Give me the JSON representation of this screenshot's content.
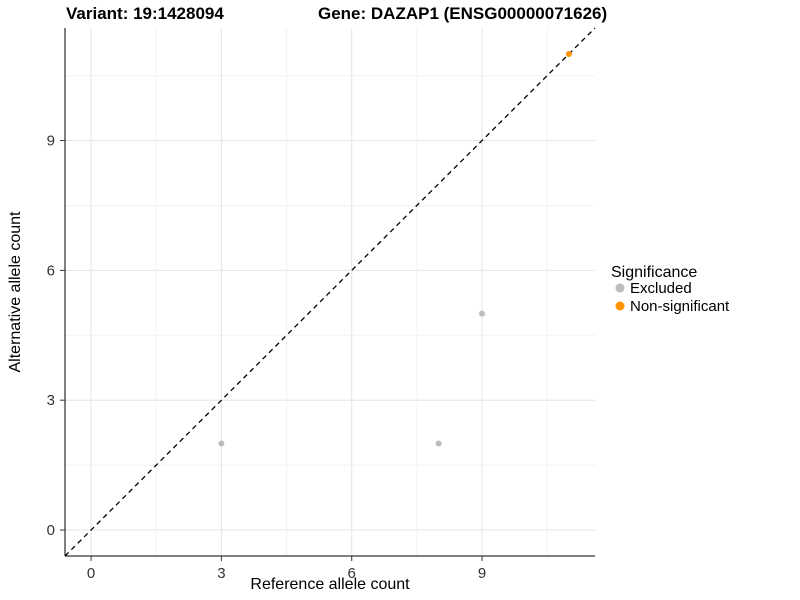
{
  "titles": {
    "left": "Variant: 19:1428094",
    "right": "Gene: DAZAP1 (ENSG00000071626)"
  },
  "chart_data": {
    "type": "scatter",
    "xlabel": "Reference allele count",
    "ylabel": "Alternative allele count",
    "xlim": [
      -0.6,
      11.6
    ],
    "ylim": [
      -0.6,
      11.6
    ],
    "xticks": [
      0,
      3,
      6,
      9
    ],
    "yticks": [
      0,
      3,
      6,
      9
    ],
    "minor_ticks": [
      1.5,
      4.5,
      7.5,
      10.5
    ],
    "grid": "on",
    "identity_line": {
      "type": "y=x",
      "style": "dashed",
      "color": "#000000"
    },
    "colors": {
      "excluded": "#bdbdbd",
      "non_significant": "#ff9300",
      "grid_major": "#e5e5e5",
      "grid_minor": "#f2f2f2",
      "axis_line": "#000000"
    },
    "legend": {
      "title": "Significance",
      "position": "right",
      "entries": [
        {
          "label": "Excluded",
          "color": "#bdbdbd"
        },
        {
          "label": "Non-significant",
          "color": "#ff9300"
        }
      ]
    },
    "series": [
      {
        "name": "Excluded",
        "color": "#bdbdbd",
        "points": [
          [
            3,
            2
          ],
          [
            8,
            2
          ],
          [
            9,
            5
          ]
        ]
      },
      {
        "name": "Non-significant",
        "color": "#ff9300",
        "points": [
          [
            11,
            11
          ]
        ]
      }
    ]
  }
}
